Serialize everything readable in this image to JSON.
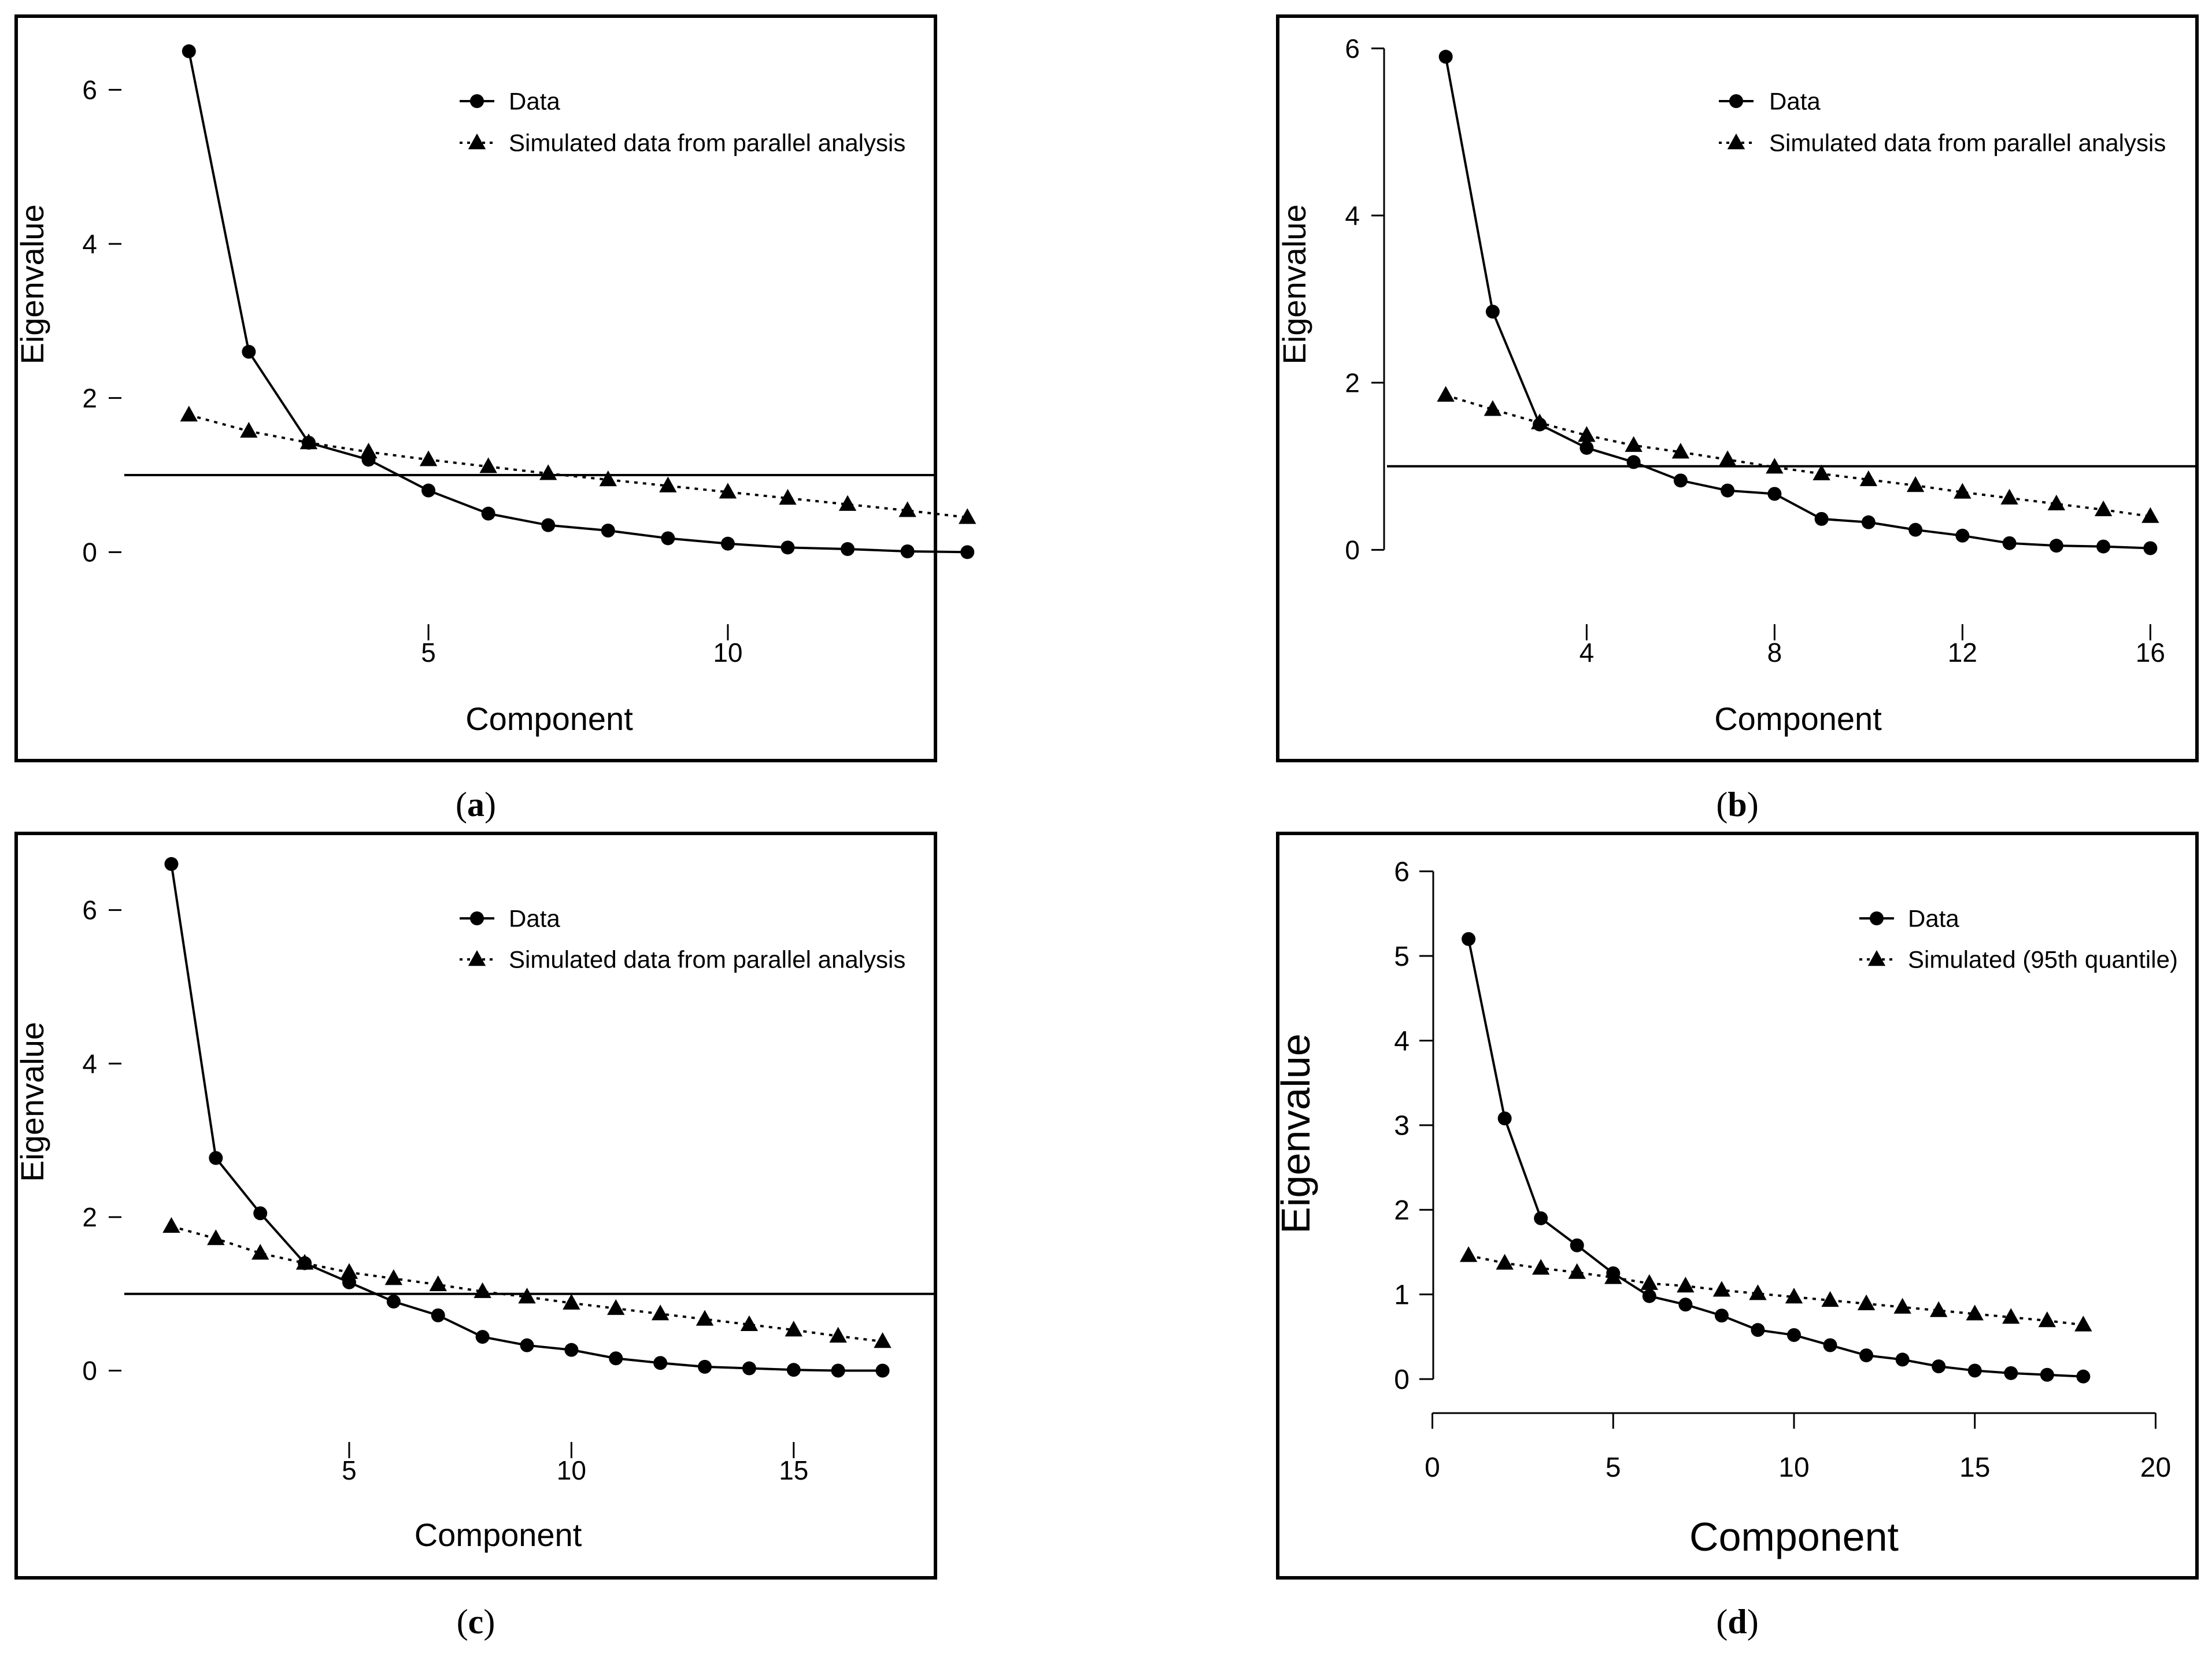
{
  "chart_data": [
    {
      "panel": "a",
      "type": "line",
      "caption": "a",
      "xlabel": "Component",
      "ylabel": "Eigenvalue",
      "xlim": [
        0.5,
        14.5
      ],
      "ylim": [
        -0.35,
        6.7
      ],
      "xticks": [
        5,
        10
      ],
      "yticks": [
        0,
        2,
        4,
        6
      ],
      "x_axis_line": false,
      "reference_line": 1,
      "x": [
        1,
        2,
        3,
        4,
        5,
        6,
        7,
        8,
        9,
        10,
        11,
        12,
        13,
        14
      ],
      "series": [
        {
          "name": "Data",
          "marker": "circle",
          "line": "solid",
          "values": [
            6.5,
            2.6,
            1.42,
            1.2,
            0.8,
            0.5,
            0.35,
            0.28,
            0.18,
            0.11,
            0.06,
            0.04,
            0.01,
            0.0
          ]
        },
        {
          "name": "Simulated data from parallel analysis",
          "marker": "triangle",
          "line": "dotted",
          "values": [
            1.78,
            1.57,
            1.42,
            1.3,
            1.2,
            1.11,
            1.02,
            0.94,
            0.86,
            0.78,
            0.7,
            0.62,
            0.54,
            0.45
          ]
        }
      ]
    },
    {
      "panel": "b",
      "type": "line",
      "caption": "b",
      "xlabel": "Component",
      "ylabel": "Eigenvalue",
      "xlim": [
        0.5,
        16.5
      ],
      "ylim": [
        -0.35,
        6.15
      ],
      "xticks": [
        4,
        8,
        12,
        16
      ],
      "yticks": [
        0,
        2,
        4,
        6
      ],
      "x_axis_line": false,
      "reference_line": 1,
      "x": [
        1,
        2,
        3,
        4,
        5,
        6,
        7,
        8,
        9,
        10,
        11,
        12,
        13,
        14,
        15,
        16
      ],
      "series": [
        {
          "name": "Data",
          "marker": "circle",
          "line": "solid",
          "values": [
            5.9,
            2.85,
            1.5,
            1.22,
            1.05,
            0.83,
            0.71,
            0.67,
            0.37,
            0.33,
            0.24,
            0.17,
            0.08,
            0.05,
            0.04,
            0.02
          ]
        },
        {
          "name": "Simulated data from parallel analysis",
          "marker": "triangle",
          "line": "dotted",
          "values": [
            1.85,
            1.68,
            1.52,
            1.37,
            1.25,
            1.17,
            1.08,
            0.99,
            0.91,
            0.84,
            0.77,
            0.69,
            0.62,
            0.55,
            0.48,
            0.4
          ]
        }
      ]
    },
    {
      "panel": "c",
      "type": "line",
      "caption": "c",
      "xlabel": "Component",
      "ylabel": "Eigenvalue",
      "xlim": [
        0.5,
        17.5
      ],
      "ylim": [
        -0.35,
        6.75
      ],
      "xticks": [
        5,
        10,
        15
      ],
      "yticks": [
        0,
        2,
        4,
        6
      ],
      "x_axis_line": false,
      "reference_line": 1,
      "x": [
        1,
        2,
        3,
        4,
        5,
        6,
        7,
        8,
        9,
        10,
        11,
        12,
        13,
        14,
        15,
        16,
        17
      ],
      "series": [
        {
          "name": "Data",
          "marker": "circle",
          "line": "solid",
          "values": [
            6.6,
            2.77,
            2.05,
            1.4,
            1.15,
            0.9,
            0.72,
            0.44,
            0.33,
            0.27,
            0.16,
            0.1,
            0.05,
            0.03,
            0.01,
            0.0,
            0.0
          ]
        },
        {
          "name": "Simulated data from parallel analysis",
          "marker": "triangle",
          "line": "dotted",
          "values": [
            1.88,
            1.72,
            1.53,
            1.4,
            1.28,
            1.2,
            1.12,
            1.03,
            0.96,
            0.88,
            0.81,
            0.74,
            0.67,
            0.6,
            0.53,
            0.45,
            0.38
          ]
        }
      ]
    },
    {
      "panel": "d",
      "type": "line",
      "caption": "d",
      "xlabel": "Component",
      "ylabel": "Eigenvalue",
      "xlim": [
        -0.6,
        20.6
      ],
      "ylim": [
        -0.3,
        6.1
      ],
      "xticks": [
        0,
        5,
        10,
        15,
        20
      ],
      "yticks": [
        0,
        1,
        2,
        3,
        4,
        5,
        6
      ],
      "x_axis_line": true,
      "reference_line": null,
      "x": [
        1,
        2,
        3,
        4,
        5,
        6,
        7,
        8,
        9,
        10,
        11,
        12,
        13,
        14,
        15,
        16,
        17,
        18
      ],
      "series": [
        {
          "name": "Data",
          "marker": "circle",
          "line": "solid",
          "values": [
            5.2,
            3.08,
            1.9,
            1.58,
            1.25,
            0.98,
            0.88,
            0.75,
            0.58,
            0.52,
            0.4,
            0.28,
            0.23,
            0.15,
            0.1,
            0.07,
            0.05,
            0.03
          ]
        },
        {
          "name": "Simulated (95th quantile)",
          "marker": "triangle",
          "line": "dotted",
          "values": [
            1.46,
            1.37,
            1.31,
            1.26,
            1.2,
            1.13,
            1.1,
            1.05,
            1.01,
            0.97,
            0.93,
            0.89,
            0.85,
            0.81,
            0.77,
            0.73,
            0.69,
            0.64
          ]
        }
      ]
    }
  ]
}
